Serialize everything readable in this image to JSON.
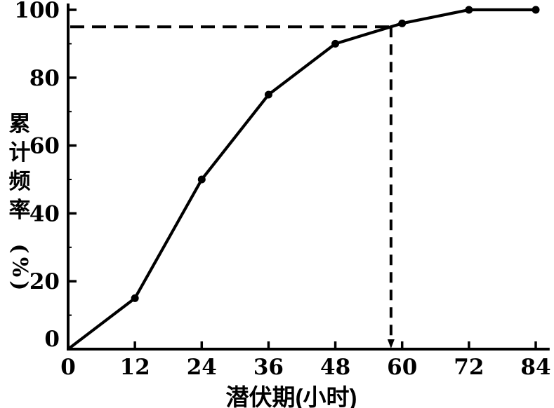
{
  "page": {
    "background_color": "#ffffff",
    "ink_color": "#000000"
  },
  "chart_data": {
    "type": "line",
    "title": "",
    "xlabel": "潜伏期(小时)",
    "ylabel": "累计频率(%)",
    "ylabel_stacked_chars": [
      "累",
      "计",
      "频",
      "率"
    ],
    "ylabel_rotated_unit": "(%)",
    "x": [
      0,
      12,
      24,
      36,
      48,
      60,
      72,
      84
    ],
    "y": [
      0,
      15,
      50,
      75,
      90,
      96,
      100,
      100
    ],
    "x_ticks": [
      0,
      12,
      24,
      36,
      48,
      60,
      72,
      84
    ],
    "y_ticks": [
      0,
      20,
      40,
      60,
      80,
      100
    ],
    "y_minor_ticks": [
      10,
      30,
      50,
      70,
      90
    ],
    "xlim": [
      0,
      87
    ],
    "ylim": [
      0,
      102
    ],
    "grid": false,
    "legend_position": "none",
    "line_color": "#000000",
    "marker": {
      "shape": "circle",
      "color": "#000000",
      "skip_first_point": true
    },
    "reference_lines": {
      "style": "dashed",
      "horizontal_value": 95,
      "vertical_value": 58,
      "arrowhead": "down-at-x-axis"
    }
  }
}
